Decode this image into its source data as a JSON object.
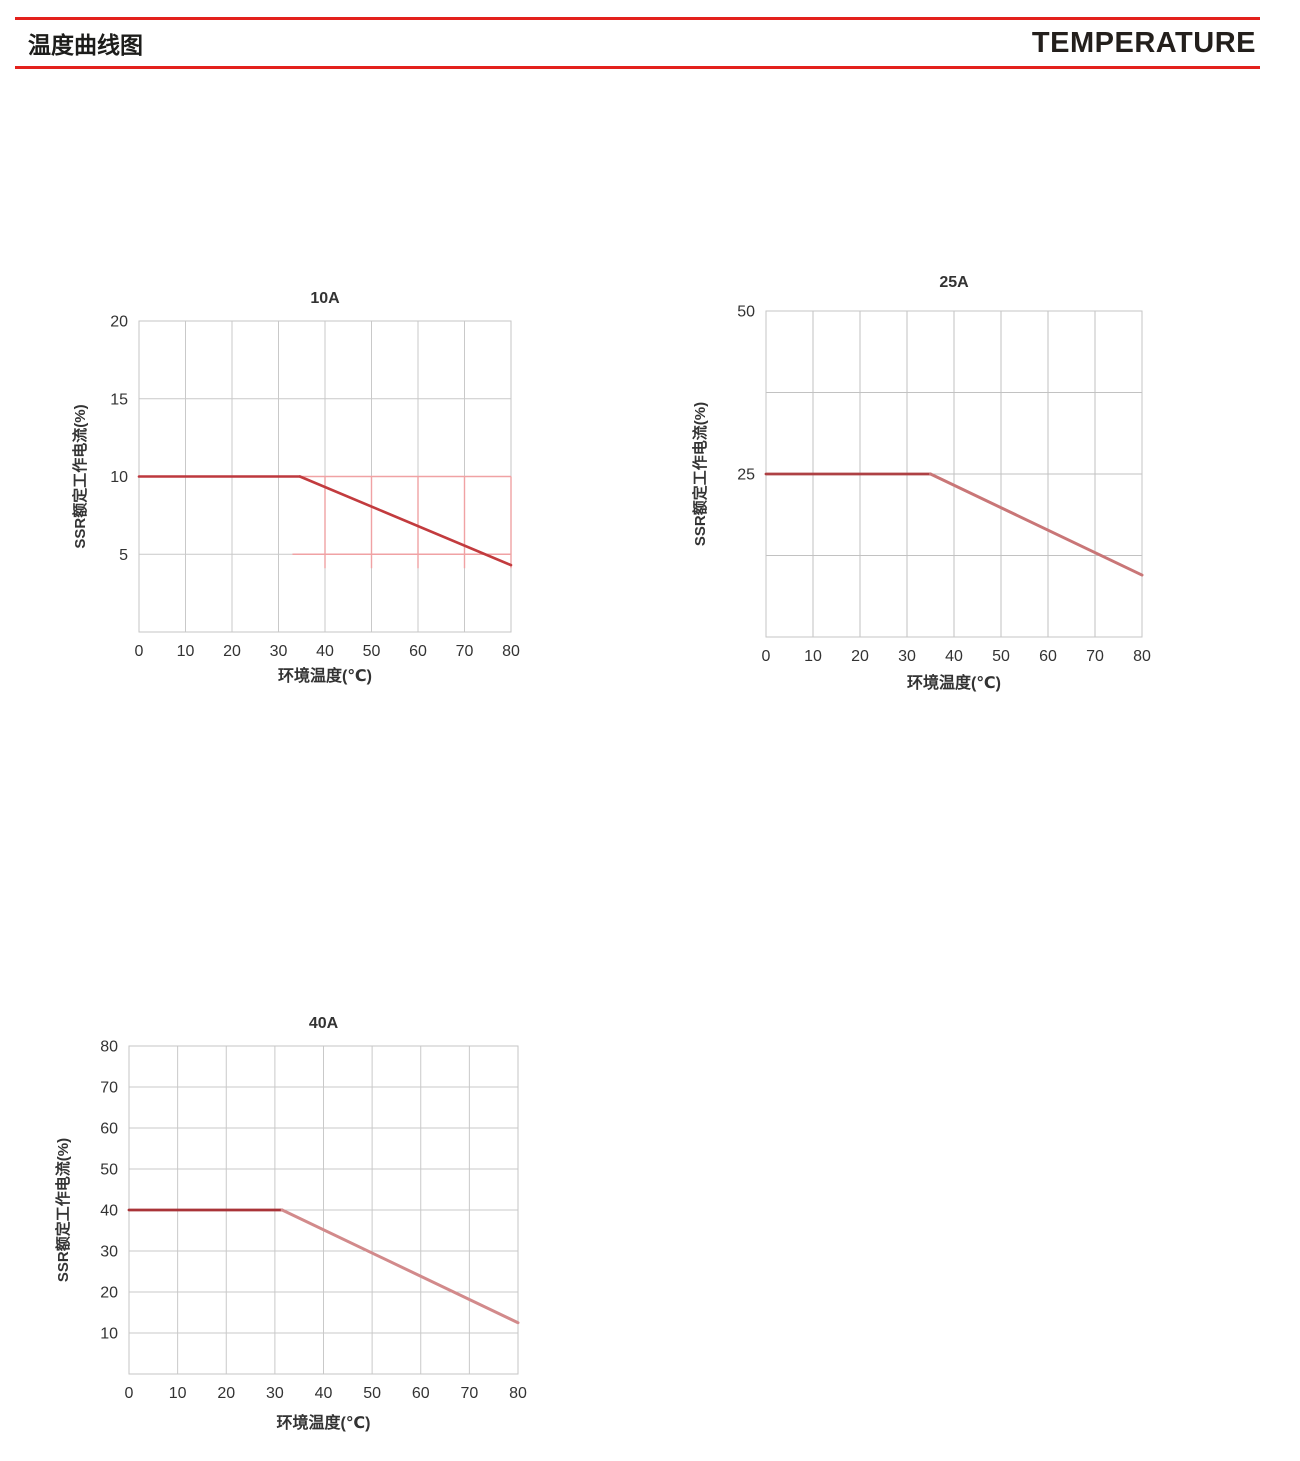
{
  "header": {
    "title_zh": "温度曲线图",
    "title_en": "TEMPERATURE",
    "rule_color": "#e3211c"
  },
  "colors": {
    "text": "#333333",
    "plot_border": "#c6c6c6"
  },
  "chart_data": [
    {
      "type": "line",
      "title": "10A",
      "xlabel": "环境温度(℃)",
      "ylabel": "SSR额定工作电流(%)",
      "xlim": [
        0,
        80
      ],
      "ylim": [
        0,
        20
      ],
      "xticks": [
        0,
        10,
        20,
        30,
        40,
        50,
        60,
        70,
        80
      ],
      "yticks": [
        5,
        10,
        15,
        20
      ],
      "x_gridlines": [
        0,
        10,
        20,
        30,
        40,
        50,
        60,
        70,
        80
      ],
      "y_gridlines": [
        0,
        5,
        10,
        15,
        20
      ],
      "grid_color": "#c9c9c9",
      "legend": "none",
      "series": [
        {
          "name": "rated-current-flat",
          "color": "#bd383e",
          "width": 2.6,
          "points": [
            [
              0,
              10
            ],
            [
              34.6,
              10
            ]
          ]
        },
        {
          "name": "rated-current-derating",
          "color": "#c23b3e",
          "width": 2.6,
          "points": [
            [
              34.6,
              10
            ],
            [
              80,
              4.3
            ]
          ]
        }
      ],
      "overlay": {
        "color": "#f0a2a4",
        "width": 1.4,
        "h_lines": [
          {
            "y": 10,
            "x1": 34.6,
            "x2": 80
          },
          {
            "y": 5,
            "x1": 33,
            "x2": 80
          }
        ],
        "v_lines": [
          {
            "x": 40,
            "y1": 4.1,
            "y2": 10
          },
          {
            "x": 50,
            "y1": 4.1,
            "y2": 10
          },
          {
            "x": 60,
            "y1": 4.1,
            "y2": 10
          },
          {
            "x": 70,
            "y1": 4.1,
            "y2": 10
          },
          {
            "x": 80,
            "y1": 4.1,
            "y2": 10
          }
        ]
      }
    },
    {
      "type": "line",
      "title": "25A",
      "xlabel": "环境温度(℃)",
      "ylabel": "SSR额定工作电流(%)",
      "xlim": [
        0,
        80
      ],
      "ylim": [
        0,
        50
      ],
      "xticks": [
        0,
        10,
        20,
        30,
        40,
        50,
        60,
        70,
        80
      ],
      "yticks": [
        25,
        50
      ],
      "x_gridlines": [
        0,
        10,
        20,
        30,
        40,
        50,
        60,
        70,
        80
      ],
      "y_gridlines": [
        0,
        12.5,
        25,
        37.5,
        50
      ],
      "grid_color": "#c2c2c2",
      "legend": "none",
      "series": [
        {
          "name": "rated-current-flat",
          "color": "#ae4144",
          "width": 2.8,
          "points": [
            [
              0,
              25
            ],
            [
              35,
              25
            ]
          ]
        },
        {
          "name": "rated-current-derating",
          "color": "#c97677",
          "width": 3,
          "points": [
            [
              35,
              25
            ],
            [
              80,
              9.5
            ]
          ]
        }
      ]
    },
    {
      "type": "line",
      "title": "40A",
      "xlabel": "环境温度(℃)",
      "ylabel": "SSR额定工作电流(%)",
      "xlim": [
        0,
        80
      ],
      "ylim": [
        0,
        80
      ],
      "xticks": [
        0,
        10,
        20,
        30,
        40,
        50,
        60,
        70,
        80
      ],
      "yticks": [
        10,
        20,
        30,
        40,
        50,
        60,
        70,
        80
      ],
      "x_gridlines": [
        0,
        10,
        20,
        30,
        40,
        50,
        60,
        70,
        80
      ],
      "y_gridlines": [
        0,
        10,
        20,
        30,
        40,
        50,
        60,
        70,
        80
      ],
      "grid_color": "#c9c9c9",
      "legend": "none",
      "series": [
        {
          "name": "rated-current-flat",
          "color": "#a93338",
          "width": 2.8,
          "points": [
            [
              0,
              40
            ],
            [
              31.5,
              40
            ]
          ]
        },
        {
          "name": "rated-current-derating",
          "color": "#d28a8b",
          "width": 3,
          "points": [
            [
              31.5,
              40
            ],
            [
              80,
              12.5
            ]
          ]
        }
      ]
    }
  ]
}
